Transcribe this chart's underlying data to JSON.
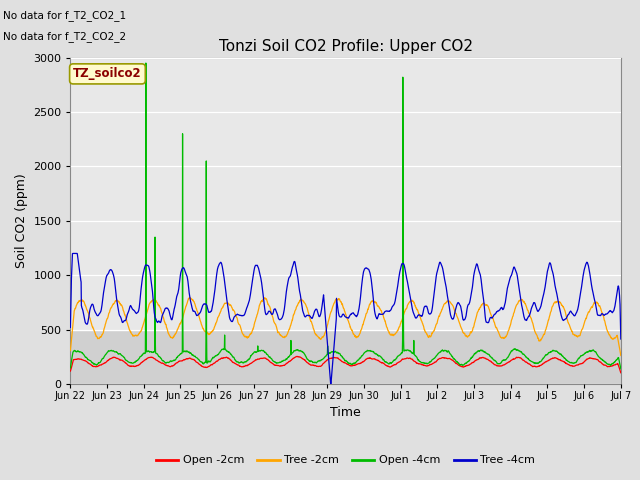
{
  "title": "Tonzi Soil CO2 Profile: Upper CO2",
  "ylabel": "Soil CO2 (ppm)",
  "xlabel": "Time",
  "ylim": [
    0,
    3000
  ],
  "note1": "No data for f_T2_CO2_1",
  "note2": "No data for f_T2_CO2_2",
  "watermark": "TZ_soilco2",
  "x_tick_labels": [
    "Jun 22",
    "Jun 23",
    "Jun 24",
    "Jun 25",
    "Jun 26",
    "Jun 27",
    "Jun 28",
    "Jun 29",
    "Jun 30",
    "Jul 1",
    "Jul 2",
    "Jul 3",
    "Jul 4",
    "Jul 5",
    "Jul 6",
    "Jul 7"
  ],
  "legend_entries": [
    "Open -2cm",
    "Tree -2cm",
    "Open -4cm",
    "Tree -4cm"
  ],
  "legend_colors": [
    "#ff0000",
    "#ffa500",
    "#00bb00",
    "#0000cc"
  ],
  "bg_color": "#e0e0e0",
  "plot_bg_lower": "#d0d0d0",
  "plot_bg_upper": "#e8e8e8",
  "n_points": 2160,
  "seed": 42
}
